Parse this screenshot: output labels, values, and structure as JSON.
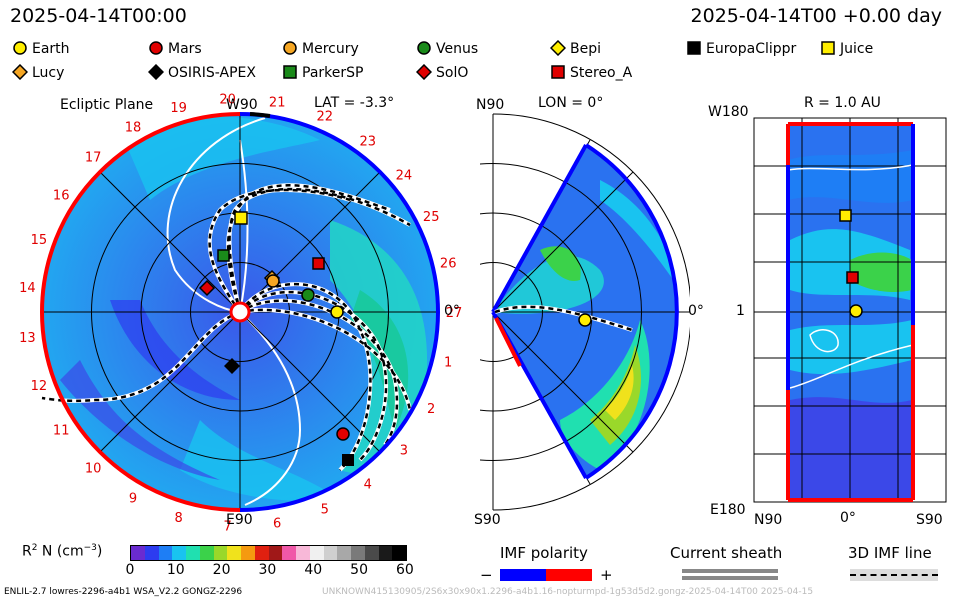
{
  "header": {
    "time_left": "2025-04-14T00:00",
    "time_right": "2025-04-14T00 +0.00 day"
  },
  "legend": [
    {
      "name": "Earth",
      "shape": "circle",
      "color": "#ffee00"
    },
    {
      "name": "Mars",
      "shape": "circle",
      "color": "#e00000"
    },
    {
      "name": "Mercury",
      "shape": "circle",
      "color": "#f5a623"
    },
    {
      "name": "Venus",
      "shape": "circle",
      "color": "#1a8a1a"
    },
    {
      "name": "Bepi",
      "shape": "diamond",
      "color": "#ffee00"
    },
    {
      "name": "EuropaClippr",
      "shape": "square",
      "color": "#000000"
    },
    {
      "name": "Juice",
      "shape": "square",
      "color": "#ffee00"
    },
    {
      "name": "Lucy",
      "shape": "diamond",
      "color": "#f5a623"
    },
    {
      "name": "OSIRIS-APEX",
      "shape": "diamond",
      "color": "#000000"
    },
    {
      "name": "ParkerSP",
      "shape": "square",
      "color": "#1a8a1a"
    },
    {
      "name": "SolO",
      "shape": "diamond",
      "color": "#e00000"
    },
    {
      "name": "Stereo_A",
      "shape": "square",
      "color": "#e00000"
    }
  ],
  "ecliptic": {
    "title": "Ecliptic Plane",
    "top_label": "W90",
    "lat_label": "LAT = -3.3°",
    "right_label": "0°",
    "bottom_label": "E90",
    "sectors": [
      "1",
      "2",
      "3",
      "4",
      "5",
      "6",
      "7",
      "8",
      "9",
      "10",
      "11",
      "12",
      "13",
      "14",
      "15",
      "16",
      "17",
      "18",
      "19",
      "20",
      "21",
      "22",
      "23",
      "24",
      "25",
      "26",
      "27"
    ]
  },
  "meridional": {
    "top_left": "N90",
    "lon_label": "LON = 0°",
    "right_label": "0°",
    "bottom_left": "S90"
  },
  "radial": {
    "r_label": "R = 1.0 AU",
    "top_left": "W180",
    "mid_left": "1",
    "bottom_left": "E180",
    "x_left": "N90",
    "x_mid": "0°",
    "x_right": "S90"
  },
  "colorbar": {
    "label_main": "R",
    "label_sup": "2",
    "label_rest": " N (cm",
    "label_sup2": "−3",
    "label_end": ")",
    "ticks": [
      "0",
      "10",
      "20",
      "30",
      "40",
      "50",
      "60"
    ],
    "colors": [
      "#6a2bd0",
      "#2d3cf0",
      "#1e7ef5",
      "#19c3f0",
      "#20e0b0",
      "#3bd24a",
      "#9ad82a",
      "#f0e21c",
      "#f59a10",
      "#e02010",
      "#a01818",
      "#f058a8",
      "#f8b8d8",
      "#f0f0f0",
      "#cfcfcf",
      "#a8a8a8",
      "#7a7a7a",
      "#4a4a4a",
      "#1a1a1a",
      "#000000"
    ]
  },
  "imf": {
    "title": "IMF polarity",
    "minus": "−",
    "plus": "+",
    "neg_color": "#0000ff",
    "pos_color": "#ff0000"
  },
  "current_sheath": {
    "title": "Current sheath"
  },
  "imf_line": {
    "title": "3D IMF line"
  },
  "footer": {
    "model": "ENLIL-2.7 lowres-2296-a4b1 WSA_V2.2 GONGZ-2296",
    "run_id": "UNKNOWN415130905/2S6x30x90x1.2296-a4b1.16-nopturmpd-1g53d5d2.gongz-2025-04-14T00   2025-04-15"
  }
}
